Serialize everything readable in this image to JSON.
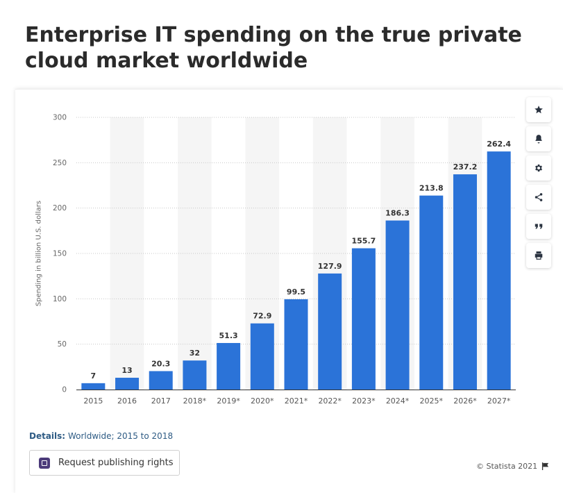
{
  "title": "Enterprise IT spending on the true private cloud market worldwide",
  "colors": {
    "bar": "#2b73d8",
    "band": "#f5f5f5",
    "grid": "#c8c8c8",
    "axis": "#333333"
  },
  "toolbar": {
    "buttons": [
      {
        "icon": "star-icon"
      },
      {
        "icon": "bell-icon"
      },
      {
        "icon": "gear-icon"
      },
      {
        "icon": "share-icon"
      },
      {
        "icon": "quote-icon"
      },
      {
        "icon": "print-icon"
      }
    ]
  },
  "details": {
    "label": "Details:",
    "value": "Worldwide; 2015 to 2018"
  },
  "publish_button": {
    "label": "Request publishing rights"
  },
  "copyright": "© Statista 2021",
  "chart_data": {
    "type": "bar",
    "ylabel": "Spending in billion U.S. dollars",
    "ylim": [
      0,
      300
    ],
    "yticks": [
      0,
      50,
      100,
      150,
      200,
      250,
      300
    ],
    "categories": [
      "2015",
      "2016",
      "2017",
      "2018*",
      "2019*",
      "2020*",
      "2021*",
      "2022*",
      "2023*",
      "2024*",
      "2025*",
      "2026*",
      "2027*"
    ],
    "values": [
      7,
      13,
      20.3,
      32,
      51.3,
      72.9,
      99.5,
      127.9,
      155.7,
      186.3,
      213.8,
      237.2,
      262.4
    ],
    "value_labels": [
      "7",
      "13",
      "20.3",
      "32",
      "51.3",
      "72.9",
      "99.5",
      "127.9",
      "155.7",
      "186.3",
      "213.8",
      "237.2",
      "262.4"
    ],
    "grid": true,
    "legend": "none"
  }
}
